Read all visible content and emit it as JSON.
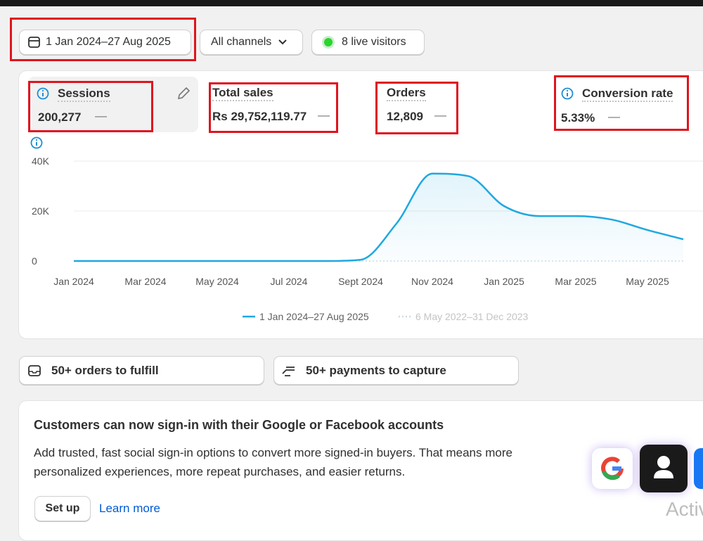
{
  "toolbar": {
    "date_range": "1 Jan 2024–27 Aug 2025",
    "channels": "All channels",
    "live_visitors": "8 live visitors"
  },
  "metrics": [
    {
      "label": "Sessions",
      "value": "200,277",
      "change": "—"
    },
    {
      "label": "Total sales",
      "value": "Rs 29,752,119.77",
      "change": "—"
    },
    {
      "label": "Orders",
      "value": "12,809",
      "change": "—"
    },
    {
      "label": "Conversion rate",
      "value": "5.33%",
      "change": "—"
    }
  ],
  "chart_data": {
    "type": "line",
    "categories": [
      "Jan 2024",
      null,
      "Mar 2024",
      null,
      "May 2024",
      null,
      "Jul 2024",
      null,
      "Sept 2024",
      null,
      "Nov 2024",
      null,
      "Jan 2025",
      null,
      "Mar 2025",
      null,
      "May 2025",
      null
    ],
    "series": [
      {
        "name": "1 Jan 2024–27 Aug 2025",
        "color": "#1fa8e0",
        "values": [
          0,
          0,
          0,
          0,
          0,
          0,
          0,
          0,
          500,
          15000,
          35000,
          34000,
          22000,
          18000,
          18000,
          16600,
          12400,
          8700
        ]
      },
      {
        "name": "6 May 2022–31 Dec 2023",
        "color": "#c9dcea",
        "values": [
          0,
          0,
          0,
          0,
          0,
          0,
          0,
          0,
          0,
          0,
          0,
          0,
          0,
          0,
          0,
          0,
          0,
          0
        ]
      }
    ],
    "ylim": [
      0,
      40000
    ],
    "yticks": [
      0,
      {
        "value": 20000,
        "label": "20K"
      },
      {
        "value": 40000,
        "label": "40K"
      }
    ],
    "grid": true
  },
  "tasks": [
    "50+ orders to fulfill",
    "50+ payments to capture"
  ],
  "card": {
    "title": "Customers can now sign-in with their Google or Facebook accounts",
    "body": "Add trusted, fast social sign-in options to convert more signed-in buyers. That means more personalized experiences, more repeat purchases, and easier returns.",
    "primary": "Set up",
    "link": "Learn more"
  },
  "watermark": "Activ"
}
